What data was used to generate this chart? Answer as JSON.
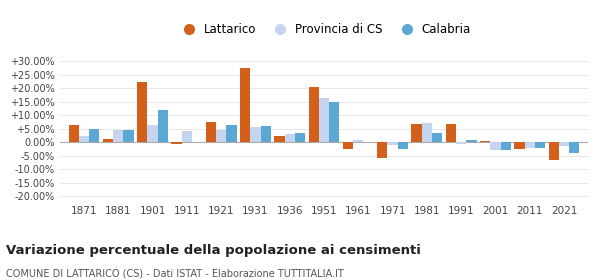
{
  "years": [
    1871,
    1881,
    1901,
    1911,
    1921,
    1931,
    1936,
    1951,
    1961,
    1971,
    1981,
    1991,
    2001,
    2011,
    2021
  ],
  "lattarico": [
    6.5,
    1.2,
    22.5,
    -0.8,
    7.5,
    27.5,
    2.2,
    20.5,
    -2.5,
    -6.0,
    6.8,
    6.8,
    0.5,
    -2.5,
    -6.5
  ],
  "provincia_cs": [
    2.5,
    4.5,
    6.5,
    4.0,
    4.5,
    5.5,
    3.0,
    16.5,
    1.0,
    -1.0,
    7.0,
    -0.8,
    -3.0,
    -2.0,
    -1.5
  ],
  "calabria": [
    5.0,
    4.5,
    12.0,
    0.0,
    6.5,
    6.0,
    3.5,
    15.0,
    0.0,
    -2.5,
    3.5,
    1.0,
    -3.0,
    -2.2,
    -4.0
  ],
  "color_lattarico": "#d2601a",
  "color_provincia": "#c5d5f0",
  "color_calabria": "#5ba8d4",
  "title": "Variazione percentuale della popolazione ai censimenti",
  "subtitle": "COMUNE DI LATTARICO (CS) - Dati ISTAT - Elaborazione TUTTITALIA.IT",
  "legend_labels": [
    "Lattarico",
    "Provincia di CS",
    "Calabria"
  ],
  "yticks": [
    -20,
    -15,
    -10,
    -5,
    0,
    5,
    10,
    15,
    20,
    25,
    30
  ],
  "ytick_labels": [
    "-20.00%",
    "-15.00%",
    "-10.00%",
    "-5.00%",
    "0.00%",
    "+5.00%",
    "+10.00%",
    "+15.00%",
    "+20.00%",
    "+25.00%",
    "+30.00%"
  ],
  "ylim": [
    -22,
    32
  ],
  "bar_width": 0.3
}
